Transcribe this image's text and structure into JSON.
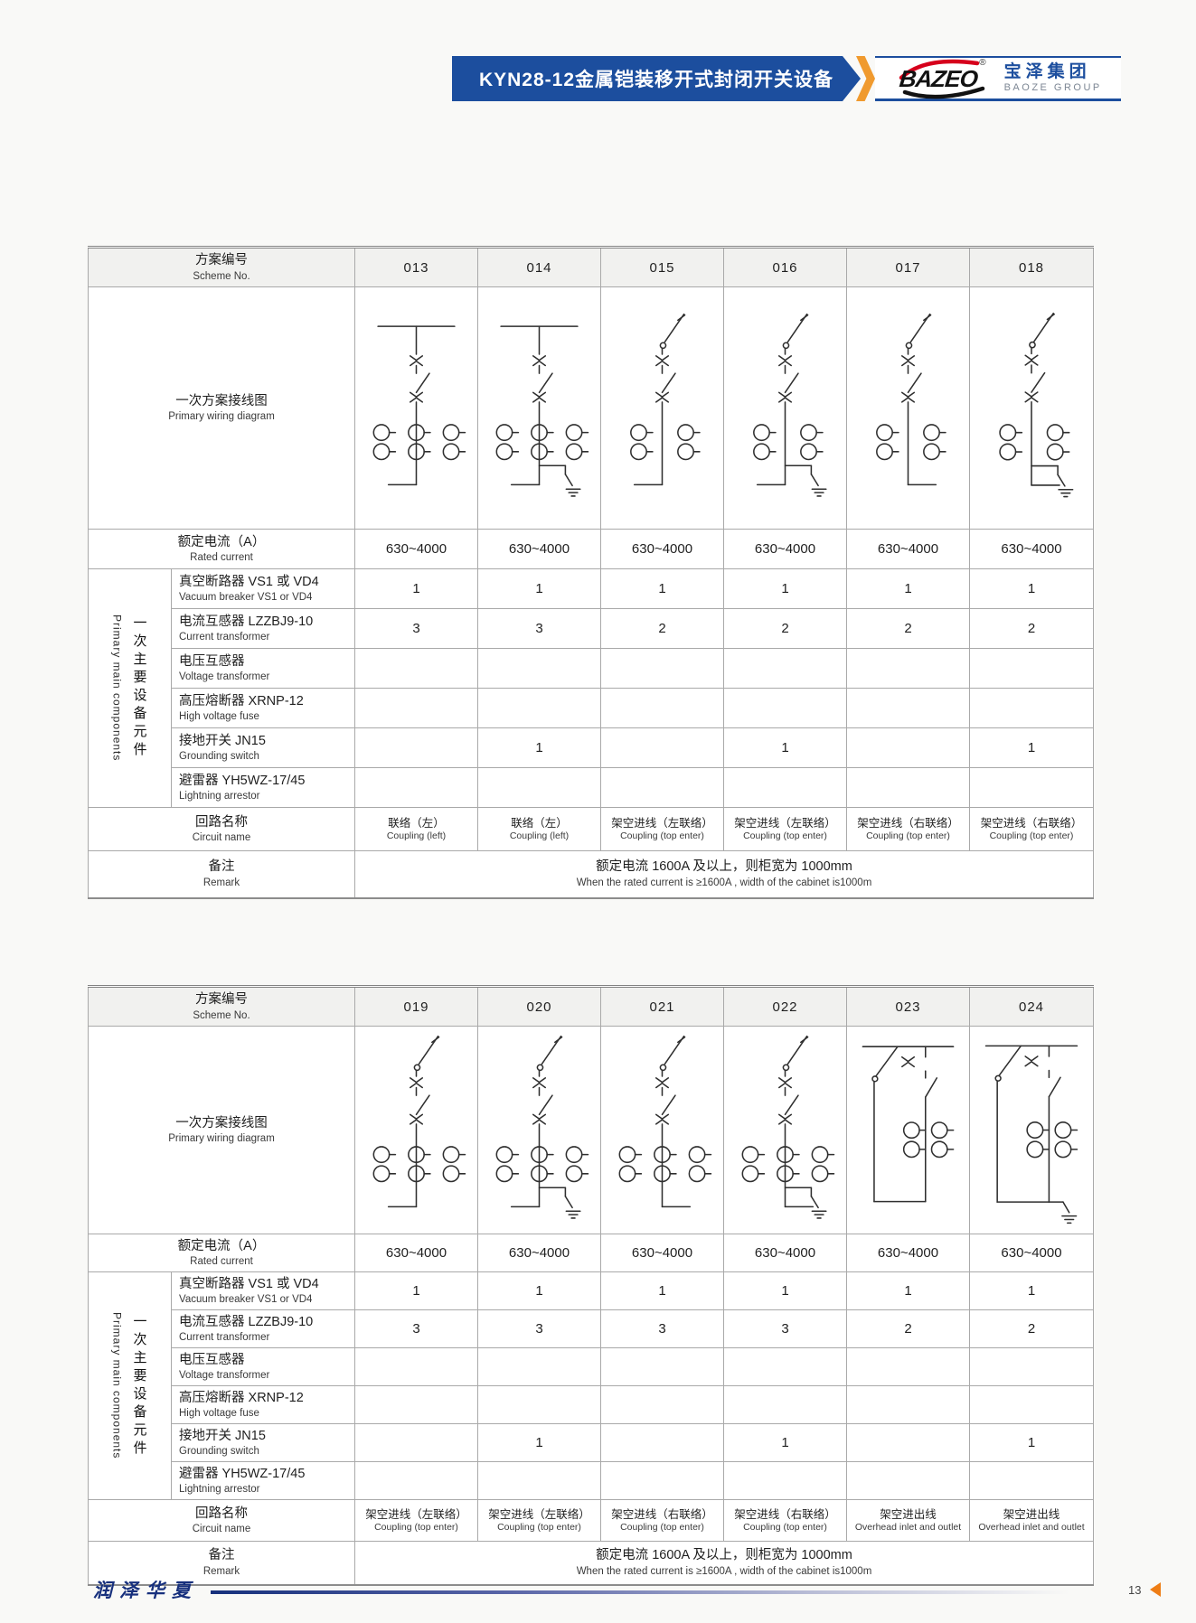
{
  "header": {
    "title": "KYN28-12金属铠装移开式封闭开关设备",
    "logo_text": "BAZEO",
    "logo_reg": "®",
    "brand_cn": "宝泽集团",
    "brand_en": "BAOZE GROUP",
    "banner_color": "#1c4e9e",
    "accent_orange": "#f09a2e",
    "logo_red": "#d6001c"
  },
  "footer": {
    "brand": "润泽华夏",
    "page_number": "13",
    "line_color": "#16307c",
    "arrow_color": "#ee7d15"
  },
  "labels": {
    "scheme_no_cn": "方案编号",
    "scheme_no_en": "Scheme No.",
    "wiring_cn": "一次方案接线图",
    "wiring_en": "Primary wiring diagram",
    "rated_cn": "额定电流（A）",
    "rated_en": "Rated current",
    "group_cn": "一次主要设备元件",
    "group_en": "Primary main components",
    "circuit_cn": "回路名称",
    "circuit_en": "Circuit name",
    "remark_cn": "备注",
    "remark_en": "Remark"
  },
  "component_rows": [
    {
      "cn": "真空断路器 VS1 或 VD4",
      "en": "Vacuum breaker VS1 or VD4"
    },
    {
      "cn": "电流互感器 LZZBJ9-10",
      "en": "Current transformer"
    },
    {
      "cn": "电压互感器",
      "en": "Voltage transformer"
    },
    {
      "cn": "高压熔断器 XRNP-12",
      "en": "High voltage fuse"
    },
    {
      "cn": "接地开关 JN15",
      "en": "Grounding switch"
    },
    {
      "cn": "避雷器 YH5WZ-17/45",
      "en": "Lightning arrestor"
    }
  ],
  "remark": {
    "cn": "额定电流 1600A 及以上，则柜宽为 1000mm",
    "en": "When the rated current is ≥1600A , width of the cabinet is1000m"
  },
  "tables": [
    {
      "schemes": [
        "013",
        "014",
        "015",
        "016",
        "017",
        "018"
      ],
      "rated_current": [
        "630~4000",
        "630~4000",
        "630~4000",
        "630~4000",
        "630~4000",
        "630~4000"
      ],
      "component_values": [
        [
          "1",
          "1",
          "1",
          "1",
          "1",
          "1"
        ],
        [
          "3",
          "3",
          "2",
          "2",
          "2",
          "2"
        ],
        [
          "",
          "",
          "",
          "",
          "",
          ""
        ],
        [
          "",
          "",
          "",
          "",
          "",
          ""
        ],
        [
          "",
          "1",
          "",
          "1",
          "",
          "1"
        ],
        [
          "",
          "",
          "",
          "",
          "",
          ""
        ]
      ],
      "circuit_names": [
        {
          "cn": "联络（左）",
          "en": "Coupling (left)"
        },
        {
          "cn": "联络（左）",
          "en": "Coupling (left)"
        },
        {
          "cn": "架空进线（左联络）",
          "en": "Coupling (top enter)"
        },
        {
          "cn": "架空进线（左联络）",
          "en": "Coupling (top enter)"
        },
        {
          "cn": "架空进线（右联络）",
          "en": "Coupling (top enter)"
        },
        {
          "cn": "架空进线（右联络）",
          "en": "Coupling (top enter)"
        }
      ],
      "diagrams": [
        {
          "scheme": "013",
          "top": "bus",
          "cts": 3,
          "ground": false,
          "elbow": "left"
        },
        {
          "scheme": "014",
          "top": "bus",
          "cts": 3,
          "ground": true,
          "elbow": "left"
        },
        {
          "scheme": "015",
          "top": "disc",
          "cts": 2,
          "ground": false,
          "elbow": "left"
        },
        {
          "scheme": "016",
          "top": "disc",
          "cts": 2,
          "ground": true,
          "elbow": "left"
        },
        {
          "scheme": "017",
          "top": "disc",
          "cts": 2,
          "ground": false,
          "elbow": "right"
        },
        {
          "scheme": "018",
          "top": "disc",
          "cts": 2,
          "ground": true,
          "elbow": "right"
        }
      ]
    },
    {
      "schemes": [
        "019",
        "020",
        "021",
        "022",
        "023",
        "024"
      ],
      "rated_current": [
        "630~4000",
        "630~4000",
        "630~4000",
        "630~4000",
        "630~4000",
        "630~4000"
      ],
      "component_values": [
        [
          "1",
          "1",
          "1",
          "1",
          "1",
          "1"
        ],
        [
          "3",
          "3",
          "3",
          "3",
          "2",
          "2"
        ],
        [
          "",
          "",
          "",
          "",
          "",
          ""
        ],
        [
          "",
          "",
          "",
          "",
          "",
          ""
        ],
        [
          "",
          "1",
          "",
          "1",
          "",
          "1"
        ],
        [
          "",
          "",
          "",
          "",
          "",
          ""
        ]
      ],
      "circuit_names": [
        {
          "cn": "架空进线（左联络）",
          "en": "Coupling (top enter)"
        },
        {
          "cn": "架空进线（左联络）",
          "en": "Coupling (top enter)"
        },
        {
          "cn": "架空进线（右联络）",
          "en": "Coupling (top enter)"
        },
        {
          "cn": "架空进线（右联络）",
          "en": "Coupling (top enter)"
        },
        {
          "cn": "架空进出线",
          "en": "Overhead inlet and outlet"
        },
        {
          "cn": "架空进出线",
          "en": "Overhead inlet and outlet"
        }
      ],
      "diagrams": [
        {
          "scheme": "019",
          "top": "disc",
          "cts": 3,
          "ground": false,
          "elbow": "left"
        },
        {
          "scheme": "020",
          "top": "disc",
          "cts": 3,
          "ground": true,
          "elbow": "left"
        },
        {
          "scheme": "021",
          "top": "disc",
          "cts": 3,
          "ground": false,
          "elbow": "right"
        },
        {
          "scheme": "022",
          "top": "disc",
          "cts": 3,
          "ground": true,
          "elbow": "right"
        },
        {
          "scheme": "023",
          "top": "loop",
          "cts": 2,
          "ground": false,
          "elbow": "none"
        },
        {
          "scheme": "024",
          "top": "loop",
          "cts": 2,
          "ground": true,
          "elbow": "none"
        }
      ]
    }
  ]
}
